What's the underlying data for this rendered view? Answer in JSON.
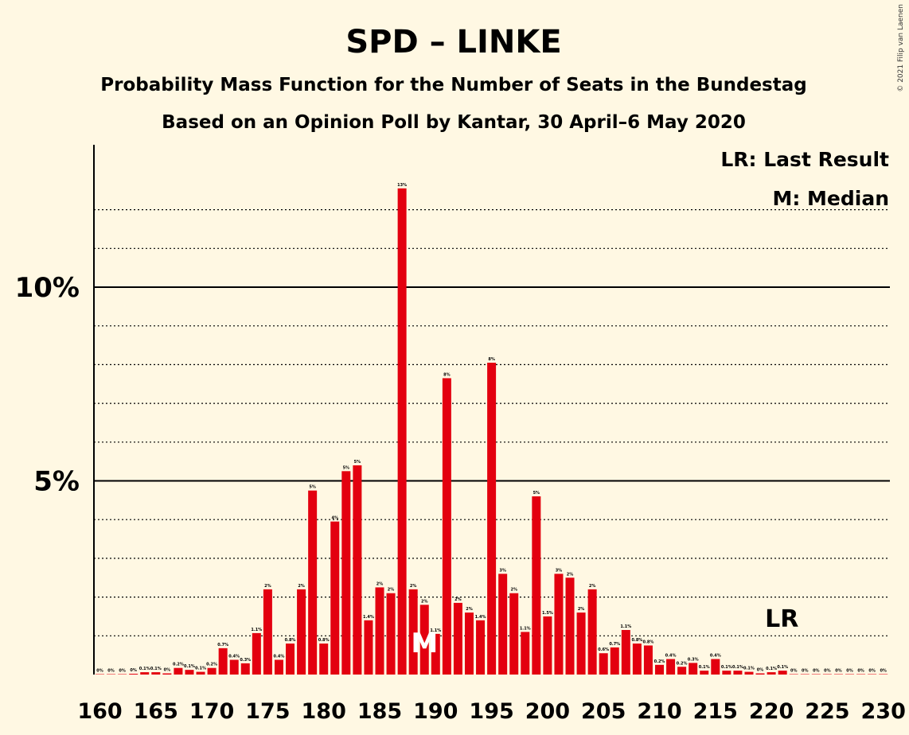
{
  "title": "SPD – LINKE",
  "subtitle1": "Probability Mass Function for the Number of Seats in the Bundestag",
  "subtitle2": "Based on an Opinion Poll by Kantar, 30 April–6 May 2020",
  "copyright": "© 2021 Filip van Laenen",
  "legend": {
    "last_result": "LR: Last Result",
    "median": "M: Median"
  },
  "markers": {
    "median_label": "M",
    "median_seat": 189,
    "last_result_label": "LR",
    "last_result_seat": 222
  },
  "colors": {
    "bar": "#E3000F",
    "background": "#FFF8E3"
  },
  "chart_data": {
    "type": "bar",
    "title": "SPD – LINKE",
    "xlabel": "",
    "ylabel": "",
    "ylim": [
      0,
      13.6
    ],
    "y_major_ticks": [
      5,
      10
    ],
    "y_tick_labels": [
      "5%",
      "10%"
    ],
    "y_minor_ticks": [
      1,
      2,
      3,
      4,
      6,
      7,
      8,
      9,
      11,
      12
    ],
    "x_tick_values": [
      160,
      165,
      170,
      175,
      180,
      185,
      190,
      195,
      200,
      205,
      210,
      215,
      220,
      225,
      230
    ],
    "x_tick_labels": [
      "160",
      "165",
      "170",
      "175",
      "180",
      "185",
      "190",
      "195",
      "200",
      "205",
      "210",
      "215",
      "220",
      "225",
      "230"
    ],
    "grid": true,
    "legend_position": "top-right",
    "x": [
      160,
      161,
      162,
      163,
      164,
      165,
      166,
      167,
      168,
      169,
      170,
      171,
      172,
      173,
      174,
      175,
      176,
      177,
      178,
      179,
      180,
      181,
      182,
      183,
      184,
      185,
      186,
      187,
      188,
      189,
      190,
      191,
      192,
      193,
      194,
      195,
      196,
      197,
      198,
      199,
      200,
      201,
      202,
      203,
      204,
      205,
      206,
      207,
      208,
      209,
      210,
      211,
      212,
      213,
      214,
      215,
      216,
      217,
      218,
      219,
      220,
      221,
      222,
      223,
      224,
      225,
      226,
      227,
      228,
      229,
      230
    ],
    "values": [
      0.01,
      0.01,
      0.01,
      0.02,
      0.06,
      0.06,
      0.03,
      0.17,
      0.12,
      0.07,
      0.17,
      0.68,
      0.38,
      0.29,
      1.07,
      2.2,
      0.38,
      0.8,
      2.2,
      4.75,
      0.8,
      3.95,
      5.25,
      5.4,
      1.4,
      2.25,
      2.1,
      12.55,
      2.2,
      1.8,
      1.05,
      7.65,
      1.85,
      1.6,
      1.4,
      8.05,
      2.6,
      2.1,
      1.1,
      4.6,
      1.5,
      2.6,
      2.5,
      1.6,
      2.2,
      0.55,
      0.7,
      1.15,
      0.8,
      0.75,
      0.25,
      0.4,
      0.2,
      0.3,
      0.1,
      0.4,
      0.1,
      0.1,
      0.07,
      0.03,
      0.06,
      0.1,
      0.01,
      0.01,
      0.01,
      0.01,
      0.01,
      0.01,
      0.01,
      0.01,
      0.01
    ],
    "labels": [
      "0%",
      "0%",
      "0%",
      "0%",
      "0.1%",
      "0.1%",
      "0%",
      "0.2%",
      "0.1%",
      "0.1%",
      "0.2%",
      "0.7%",
      "0.4%",
      "0.3%",
      "1.1%",
      "2%",
      "0.4%",
      "0.8%",
      "2%",
      "5%",
      "0.8%",
      "4%",
      "5%",
      "5%",
      "1.4%",
      "2%",
      "2%",
      "13%",
      "2%",
      "2%",
      "1.1%",
      "8%",
      "2%",
      "2%",
      "1.4%",
      "8%",
      "3%",
      "2%",
      "1.1%",
      "5%",
      "1.5%",
      "3%",
      "2%",
      "2%",
      "2%",
      "0.6%",
      "0.7%",
      "1.1%",
      "0.8%",
      "0.8%",
      "0.2%",
      "0.4%",
      "0.2%",
      "0.3%",
      "0.1%",
      "0.4%",
      "0.1%",
      "0.1%",
      "0.1%",
      "0%",
      "0.1%",
      "0.1%",
      "0%",
      "0%",
      "0%",
      "0%",
      "0%",
      "0%",
      "0%",
      "0%",
      "0%"
    ]
  }
}
